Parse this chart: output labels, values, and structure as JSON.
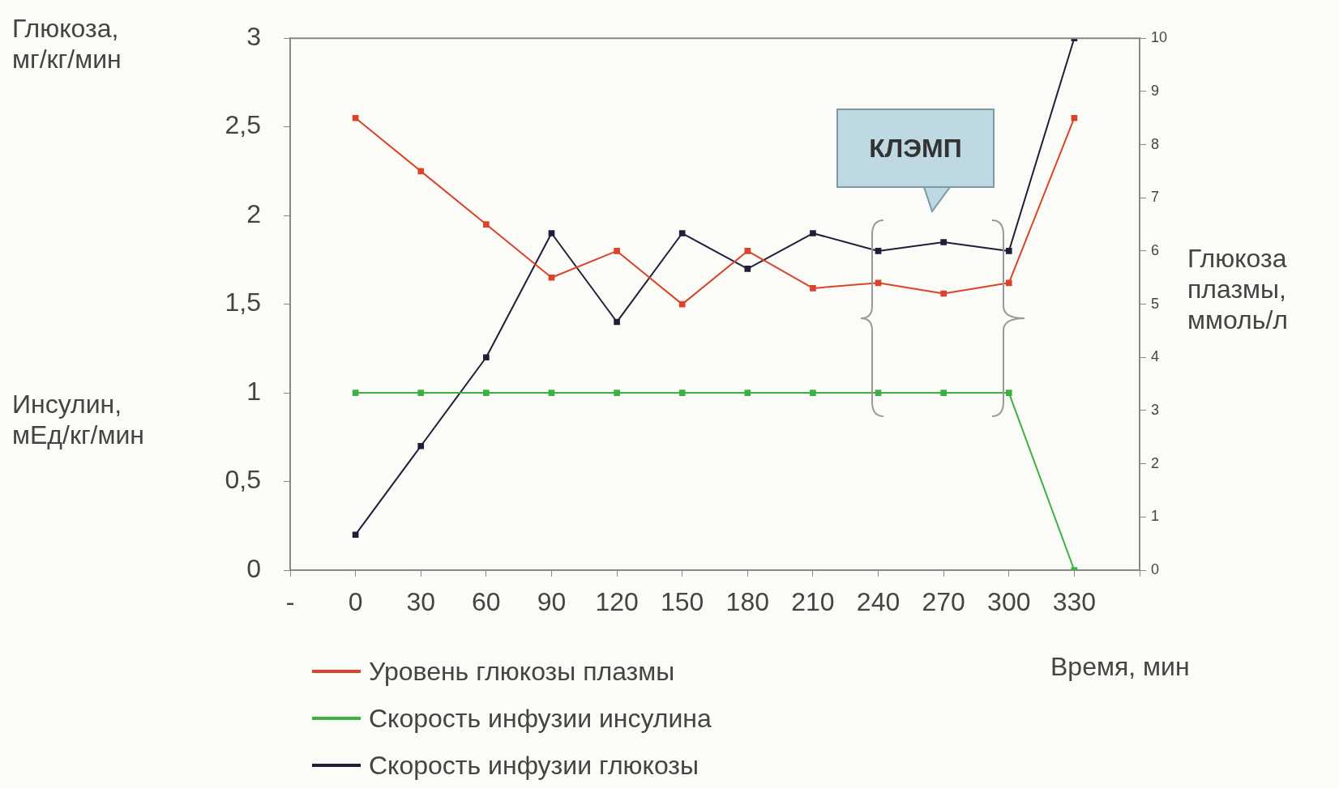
{
  "chart_data": {
    "type": "line",
    "ylabel": "Глюкоза, мг/кг/мин",
    "y2label": "Глюкоза плазмы, ммоль/л",
    "xlabel": "Время, мин",
    "categories": [
      "-",
      "0",
      "30",
      "60",
      "90",
      "120",
      "150",
      "180",
      "210",
      "240",
      "270",
      "300",
      "330",
      null
    ],
    "series": [
      {
        "name": "Уровень глюкозы плазмы",
        "color": "#d9442b",
        "axis": "y2",
        "values": [
          null,
          8.5,
          7.5,
          6.5,
          5.5,
          6.0,
          5.0,
          6.0,
          5.3,
          5.4,
          5.2,
          5.4,
          8.5,
          null
        ]
      },
      {
        "name": "Скорость инфузии инсулина",
        "color": "#3cb043",
        "values": [
          null,
          1,
          1,
          1,
          1,
          1,
          1,
          1,
          1,
          1,
          1,
          1,
          0,
          null
        ]
      },
      {
        "name": "Скорость инфузии глюкозы",
        "color": "#1f1f3a",
        "values": [
          null,
          0.2,
          0.7,
          1.2,
          1.9,
          1.4,
          1.9,
          1.7,
          1.9,
          1.8,
          1.85,
          1.8,
          3.0,
          null
        ]
      }
    ],
    "ylim": [
      0,
      3
    ],
    "yticks": [
      0,
      {
        "value": 0.5,
        "label": "0,5"
      },
      1,
      {
        "value": 1.5,
        "label": "1,5"
      },
      2,
      {
        "value": 2.5,
        "label": "2,5"
      },
      3
    ],
    "y2lim": [
      0,
      10
    ],
    "y2ticks": [
      0,
      1,
      2,
      3,
      4,
      5,
      6,
      7,
      8,
      9,
      10
    ],
    "annotations": [
      "Инсулин, мЕд/кг/мин",
      "КЛЭМП"
    ],
    "legend": "bottom left",
    "marker": "square",
    "line_style": "solid",
    "grid": false
  }
}
